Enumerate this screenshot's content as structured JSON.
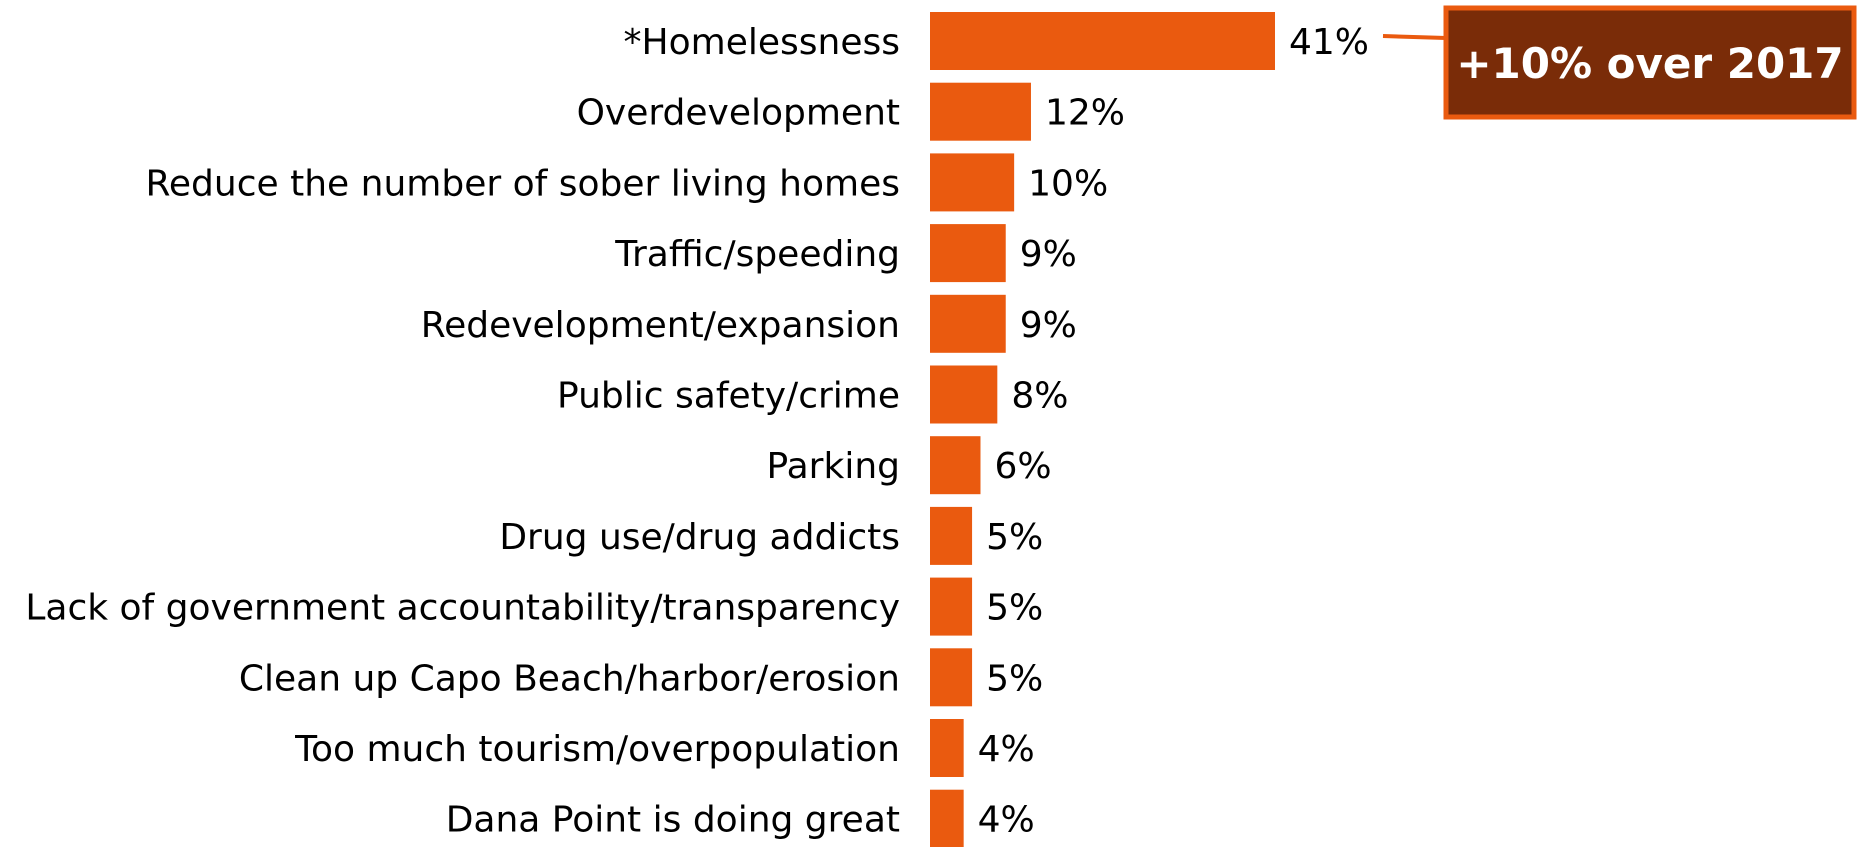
{
  "chart_data": {
    "type": "bar",
    "orientation": "horizontal",
    "categories": [
      "*Homelessness",
      "Overdevelopment",
      "Reduce the number of sober living homes",
      "Traffic/speeding",
      "Redevelopment/expansion",
      "Public safety/crime",
      "Parking",
      "Drug use/drug addicts",
      "Lack of government accountability/transparency",
      "Clean up Capo Beach/harbor/erosion",
      "Too much tourism/overpopulation",
      "Dana Point is doing great"
    ],
    "values": [
      41,
      12,
      10,
      9,
      9,
      8,
      6,
      5,
      5,
      5,
      4,
      4
    ],
    "value_labels": [
      "41%",
      "12%",
      "10%",
      "9%",
      "9%",
      "8%",
      "6%",
      "5%",
      "5%",
      "5%",
      "4%",
      "4%"
    ],
    "value_suffix": "%",
    "xlim": [
      0,
      41
    ],
    "grid": false,
    "legend": "none",
    "annotation": {
      "text": "+10% over 2017",
      "target_category": "*Homelessness"
    }
  },
  "colors": {
    "bar": "#EA5A0F",
    "callout_fill": "#7A2C08",
    "callout_border": "#EA5A0F",
    "text": "#000000"
  }
}
